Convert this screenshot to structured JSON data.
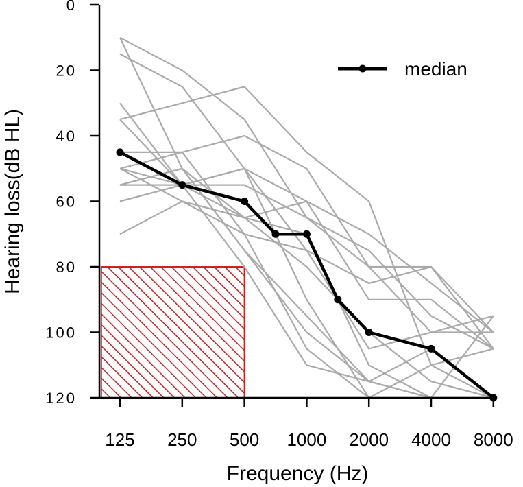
{
  "chart_data": {
    "type": "line",
    "title": "",
    "xlabel": "Frequency (Hz)",
    "ylabel": "Hearing loss(dB HL)",
    "x_tick_labels": [
      "125",
      "250",
      "500",
      "1000",
      "2000",
      "4000",
      "8000"
    ],
    "x_positions_octave": [
      0,
      1,
      2,
      3,
      4,
      5,
      6
    ],
    "y_tick_labels": [
      "0",
      "20",
      "40",
      "60",
      "80",
      "100",
      "120"
    ],
    "y_tick_values": [
      0,
      20,
      40,
      60,
      80,
      100,
      120
    ],
    "ylim": [
      0,
      120
    ],
    "y_inverted": true,
    "median": {
      "name": "median",
      "color": "#000000",
      "x": [
        0,
        1,
        2,
        2.5,
        3,
        3.5,
        4,
        5,
        6
      ],
      "y": [
        45,
        55,
        60,
        70,
        70,
        90,
        100,
        105,
        120
      ]
    },
    "individuals_color": "#aaaaaa",
    "individuals": [
      {
        "x": [
          0,
          1,
          2,
          3,
          4,
          5,
          6
        ],
        "y": [
          10,
          20,
          35,
          65,
          80,
          80,
          100
        ]
      },
      {
        "x": [
          0,
          1,
          2,
          3,
          4,
          5,
          6
        ],
        "y": [
          15,
          25,
          50,
          60,
          70,
          85,
          100
        ]
      },
      {
        "x": [
          0,
          1,
          2,
          3,
          4,
          5,
          6
        ],
        "y": [
          10,
          50,
          75,
          100,
          115,
          120,
          95
        ]
      },
      {
        "x": [
          0,
          1,
          2,
          3,
          4,
          5,
          6
        ],
        "y": [
          30,
          55,
          65,
          60,
          90,
          90,
          105
        ]
      },
      {
        "x": [
          0,
          1,
          2,
          3,
          4,
          5,
          6
        ],
        "y": [
          35,
          30,
          25,
          45,
          60,
          110,
          105
        ]
      },
      {
        "x": [
          0,
          1,
          2,
          3,
          4,
          5,
          6
        ],
        "y": [
          35,
          55,
          50,
          75,
          85,
          80,
          105
        ]
      },
      {
        "x": [
          0,
          1,
          2,
          3,
          4,
          5,
          6
        ],
        "y": [
          45,
          45,
          70,
          105,
          120,
          110,
          120
        ]
      },
      {
        "x": [
          0,
          1,
          2,
          3,
          4,
          5,
          6
        ],
        "y": [
          50,
          45,
          40,
          50,
          80,
          100,
          100
        ]
      },
      {
        "x": [
          0,
          1,
          2,
          3,
          4,
          5,
          6
        ],
        "y": [
          50,
          60,
          65,
          80,
          100,
          115,
          120
        ]
      },
      {
        "x": [
          0,
          1,
          2,
          3,
          4,
          5,
          6
        ],
        "y": [
          55,
          55,
          55,
          65,
          75,
          95,
          105
        ]
      },
      {
        "x": [
          0,
          1,
          2,
          3,
          4,
          5,
          6
        ],
        "y": [
          55,
          50,
          65,
          70,
          110,
          120,
          120
        ]
      },
      {
        "x": [
          0,
          1,
          2,
          3,
          4,
          5,
          6
        ],
        "y": [
          60,
          55,
          50,
          90,
          120,
          120,
          120
        ]
      },
      {
        "x": [
          0,
          1,
          2,
          3,
          4,
          5,
          6
        ],
        "y": [
          70,
          60,
          70,
          75,
          105,
          100,
          95
        ]
      },
      {
        "x": [
          0,
          1,
          2,
          3,
          4,
          5,
          6
        ],
        "y": [
          55,
          50,
          75,
          95,
          115,
          105,
          120
        ]
      },
      {
        "x": [
          0,
          1,
          2,
          3,
          4,
          5,
          6
        ],
        "y": [
          50,
          55,
          80,
          110,
          115,
          120,
          120
        ]
      }
    ],
    "hatched_region": {
      "x": [
        -0.3,
        2
      ],
      "y": [
        80,
        120
      ],
      "color": "#cc2222"
    },
    "legend": {
      "position": "top-right",
      "entries": [
        "median"
      ]
    }
  }
}
